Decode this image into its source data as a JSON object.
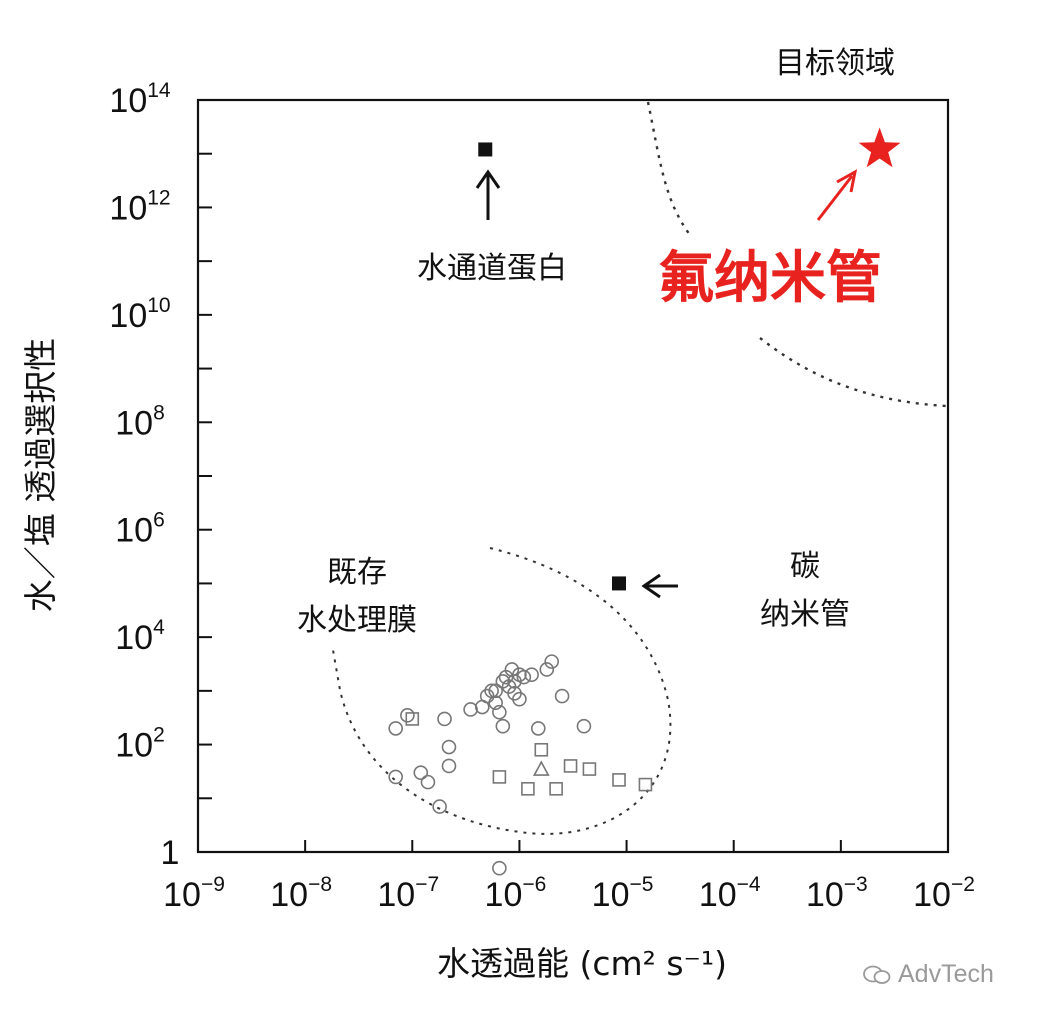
{
  "chart_data": {
    "type": "scatter",
    "title": "",
    "xlabel": "水透過能 (cm² s⁻¹)",
    "ylabel": "水／塩 透過選択性",
    "x_scale": "log",
    "y_scale": "log",
    "xlim": [
      1e-09,
      0.01
    ],
    "ylim": [
      1,
      100000000000000.0
    ],
    "x_ticks": [
      {
        "value": 1e-09,
        "base": "10",
        "exp": "−9"
      },
      {
        "value": 1e-08,
        "base": "10",
        "exp": "−8"
      },
      {
        "value": 1e-07,
        "base": "10",
        "exp": "−7"
      },
      {
        "value": 1e-06,
        "base": "10",
        "exp": "−6"
      },
      {
        "value": 1e-05,
        "base": "10",
        "exp": "−5"
      },
      {
        "value": 0.0001,
        "base": "10",
        "exp": "−4"
      },
      {
        "value": 0.001,
        "base": "10",
        "exp": "−3"
      },
      {
        "value": 0.01,
        "base": "10",
        "exp": "−2"
      }
    ],
    "y_ticks": [
      {
        "value": 1,
        "base": "1",
        "exp": ""
      },
      {
        "value": 100.0,
        "base": "10",
        "exp": "2"
      },
      {
        "value": 10000.0,
        "base": "10",
        "exp": "4"
      },
      {
        "value": 1000000.0,
        "base": "10",
        "exp": "6"
      },
      {
        "value": 100000000.0,
        "base": "10",
        "exp": "8"
      },
      {
        "value": 10000000000.0,
        "base": "10",
        "exp": "10"
      },
      {
        "value": 1000000000000.0,
        "base": "10",
        "exp": "12"
      },
      {
        "value": 100000000000000.0,
        "base": "10",
        "exp": "14"
      }
    ],
    "grid": false,
    "legend": "none",
    "colors": {
      "default": "#111111",
      "highlight": "#e8231f",
      "markers": "#777777"
    },
    "labels": {
      "target_region": "目标领域",
      "aquaporin": "水通道蛋白",
      "fluorine_nanotube": "氟纳米管",
      "carbon_nanotube_line1": "碳",
      "carbon_nanotube_line2": "纳米管",
      "existing_membranes_line1": "既存",
      "existing_membranes_line2": "水处理膜"
    },
    "highlight_points": [
      {
        "id": "aquaporin",
        "marker": "filled-square",
        "x": 4.8e-07,
        "y": 12000000000000.0
      },
      {
        "id": "carbon-nanotube",
        "marker": "filled-square",
        "x": 8.5e-06,
        "y": 100000.0
      },
      {
        "id": "fluorine-nanotube",
        "marker": "star",
        "x": 0.0023,
        "y": 12000000000000.0
      }
    ],
    "series": [
      {
        "marker": "circle",
        "points": [
          {
            "x": 7e-08,
            "y": 200
          },
          {
            "x": 9e-08,
            "y": 350
          },
          {
            "x": 2e-07,
            "y": 300
          },
          {
            "x": 1.2e-07,
            "y": 30
          },
          {
            "x": 1.4e-07,
            "y": 20
          },
          {
            "x": 7e-08,
            "y": 25
          },
          {
            "x": 2.2e-07,
            "y": 40
          },
          {
            "x": 1.8e-07,
            "y": 7
          },
          {
            "x": 2.2e-07,
            "y": 90
          },
          {
            "x": 3.5e-07,
            "y": 450
          },
          {
            "x": 4.5e-07,
            "y": 500
          },
          {
            "x": 5e-07,
            "y": 800
          },
          {
            "x": 5.5e-07,
            "y": 1000
          },
          {
            "x": 6e-07,
            "y": 600
          },
          {
            "x": 6.5e-07,
            "y": 400
          },
          {
            "x": 7e-07,
            "y": 1500
          },
          {
            "x": 8e-07,
            "y": 1200
          },
          {
            "x": 9e-07,
            "y": 900
          },
          {
            "x": 1e-06,
            "y": 700
          },
          {
            "x": 8.5e-07,
            "y": 2500
          },
          {
            "x": 1e-06,
            "y": 2000
          },
          {
            "x": 7.5e-07,
            "y": 1800
          },
          {
            "x": 6e-07,
            "y": 1000
          },
          {
            "x": 9e-07,
            "y": 1500
          },
          {
            "x": 1.1e-06,
            "y": 1800
          },
          {
            "x": 1.3e-06,
            "y": 2000
          },
          {
            "x": 1.8e-06,
            "y": 2500
          },
          {
            "x": 2e-06,
            "y": 3500
          },
          {
            "x": 1.5e-06,
            "y": 200
          },
          {
            "x": 2.5e-06,
            "y": 800
          },
          {
            "x": 4e-06,
            "y": 220
          },
          {
            "x": 7e-07,
            "y": 220
          },
          {
            "x": 6.5e-07,
            "y": 0.5
          }
        ]
      },
      {
        "marker": "square",
        "points": [
          {
            "x": 1e-07,
            "y": 300
          },
          {
            "x": 6.5e-07,
            "y": 25
          },
          {
            "x": 1.2e-06,
            "y": 15
          },
          {
            "x": 1.6e-06,
            "y": 80
          },
          {
            "x": 2.2e-06,
            "y": 15
          },
          {
            "x": 3e-06,
            "y": 40
          },
          {
            "x": 4.5e-06,
            "y": 35
          },
          {
            "x": 8.5e-06,
            "y": 22
          },
          {
            "x": 1.5e-05,
            "y": 18
          }
        ]
      },
      {
        "marker": "triangle",
        "points": [
          {
            "x": 1.6e-06,
            "y": 35
          }
        ]
      }
    ]
  },
  "watermark": "AdvTech"
}
